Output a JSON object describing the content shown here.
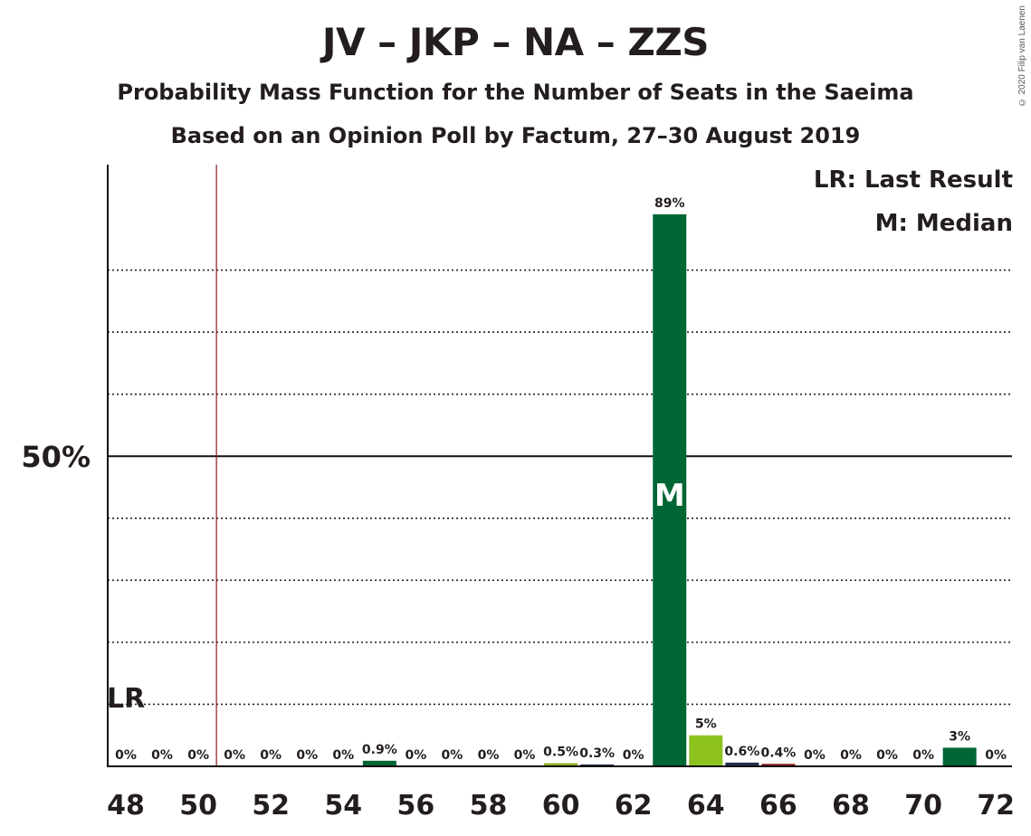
{
  "title": "JV – JKP – NA – ZZS",
  "subtitle1": "Probability Mass Function for the Number of Seats in the Saeima",
  "subtitle2": "Based on an Opinion Poll by Factum, 27–30 August 2019",
  "copyright": "© 2020 Filip van Laenen",
  "legend": {
    "lr": "LR: Last Result",
    "m": "M: Median"
  },
  "colors": {
    "dark_green": "#006633",
    "light_green": "#8dc21e",
    "navy": "#1f2f4f",
    "red": "#8b1a1a",
    "olive": "#8fb020",
    "lr_line": "#8b1a1a"
  },
  "chart_data": {
    "type": "bar",
    "x_range": [
      48,
      72
    ],
    "ylim": [
      0,
      97
    ],
    "y_tick_label": "50%",
    "y_tick_value": 50,
    "gridlines": [
      10,
      20,
      30,
      40,
      60,
      70,
      80
    ],
    "x_ticks": [
      "48",
      "50",
      "52",
      "54",
      "56",
      "58",
      "60",
      "62",
      "64",
      "66",
      "68",
      "70",
      "72"
    ],
    "last_result": {
      "seats": 50.5,
      "label": "LR"
    },
    "median": {
      "seats": 63,
      "label": "M"
    },
    "bars": [
      {
        "seats": 48,
        "value": 0,
        "label": "0%",
        "color": "dark_green"
      },
      {
        "seats": 49,
        "value": 0,
        "label": "0%",
        "color": "dark_green"
      },
      {
        "seats": 50,
        "value": 0,
        "label": "0%",
        "color": "dark_green"
      },
      {
        "seats": 51,
        "value": 0,
        "label": "0%",
        "color": "dark_green"
      },
      {
        "seats": 52,
        "value": 0,
        "label": "0%",
        "color": "dark_green"
      },
      {
        "seats": 53,
        "value": 0,
        "label": "0%",
        "color": "dark_green"
      },
      {
        "seats": 54,
        "value": 0,
        "label": "0%",
        "color": "dark_green"
      },
      {
        "seats": 55,
        "value": 0.9,
        "label": "0.9%",
        "color": "dark_green"
      },
      {
        "seats": 56,
        "value": 0,
        "label": "0%",
        "color": "dark_green"
      },
      {
        "seats": 57,
        "value": 0,
        "label": "0%",
        "color": "dark_green"
      },
      {
        "seats": 58,
        "value": 0,
        "label": "0%",
        "color": "dark_green"
      },
      {
        "seats": 59,
        "value": 0,
        "label": "0%",
        "color": "dark_green"
      },
      {
        "seats": 60,
        "value": 0.5,
        "label": "0.5%",
        "color": "olive"
      },
      {
        "seats": 61,
        "value": 0.3,
        "label": "0.3%",
        "color": "navy"
      },
      {
        "seats": 62,
        "value": 0,
        "label": "0%",
        "color": "dark_green"
      },
      {
        "seats": 63,
        "value": 89,
        "label": "89%",
        "color": "dark_green"
      },
      {
        "seats": 64,
        "value": 5,
        "label": "5%",
        "color": "light_green"
      },
      {
        "seats": 65,
        "value": 0.6,
        "label": "0.6%",
        "color": "navy"
      },
      {
        "seats": 66,
        "value": 0.4,
        "label": "0.4%",
        "color": "red"
      },
      {
        "seats": 67,
        "value": 0,
        "label": "0%",
        "color": "dark_green"
      },
      {
        "seats": 68,
        "value": 0,
        "label": "0%",
        "color": "dark_green"
      },
      {
        "seats": 69,
        "value": 0,
        "label": "0%",
        "color": "dark_green"
      },
      {
        "seats": 70,
        "value": 0,
        "label": "0%",
        "color": "dark_green"
      },
      {
        "seats": 71,
        "value": 3,
        "label": "3%",
        "color": "dark_green"
      },
      {
        "seats": 72,
        "value": 0,
        "label": "0%",
        "color": "dark_green"
      }
    ]
  }
}
